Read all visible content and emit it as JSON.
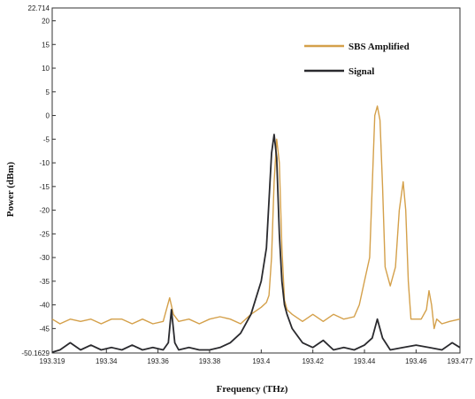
{
  "chart_data": {
    "type": "line",
    "title": "",
    "xlabel": "Frequency (THz)",
    "ylabel": "Power (dBm)",
    "xlim": [
      193.319,
      193.477
    ],
    "ylim": [
      -50.1629,
      22.714
    ],
    "x_ticks": [
      193.319,
      193.34,
      193.36,
      193.38,
      193.4,
      193.42,
      193.44,
      193.46,
      193.477
    ],
    "x_tick_labels": [
      "193.319",
      "193.34",
      "193.36",
      "193.38",
      "193.4",
      "193.42",
      "193.44",
      "193.46",
      "193.477"
    ],
    "y_ticks": [
      22.714,
      20,
      15,
      10,
      5,
      0,
      -5,
      -10,
      -15,
      -20,
      -25,
      -30,
      -35,
      -40,
      -45,
      -50.1629
    ],
    "y_tick_labels": [
      "22.714",
      "20",
      "15",
      "10",
      "5",
      "0",
      "-5",
      "-10",
      "-15",
      "-20",
      "-25",
      "-30",
      "-35",
      "-40",
      "-45",
      "-50.1629"
    ],
    "grid": false,
    "legend_position": "top-right",
    "series": [
      {
        "name": "SBS Amplified",
        "color": "#D4A04A",
        "x": [
          193.319,
          193.322,
          193.326,
          193.33,
          193.334,
          193.338,
          193.342,
          193.346,
          193.35,
          193.354,
          193.358,
          193.362,
          193.3645,
          193.366,
          193.368,
          193.372,
          193.376,
          193.38,
          193.384,
          193.388,
          193.392,
          193.396,
          193.4,
          193.402,
          193.403,
          193.404,
          193.405,
          193.406,
          193.407,
          193.408,
          193.409,
          193.41,
          193.412,
          193.416,
          193.42,
          193.424,
          193.428,
          193.432,
          193.436,
          193.438,
          193.44,
          193.442,
          193.443,
          193.444,
          193.445,
          193.446,
          193.447,
          193.448,
          193.45,
          193.452,
          193.4535,
          193.455,
          193.456,
          193.457,
          193.458,
          193.46,
          193.462,
          193.464,
          193.465,
          193.466,
          193.467,
          193.468,
          193.47,
          193.473,
          193.477
        ],
        "values": [
          -43,
          -44,
          -43,
          -43.5,
          -43,
          -44,
          -43,
          -43,
          -44,
          -43,
          -44,
          -43.5,
          -38.5,
          -42,
          -43.5,
          -43,
          -44,
          -43,
          -42.5,
          -43,
          -44,
          -42,
          -40.5,
          -39.5,
          -38,
          -30,
          -14,
          -5,
          -10,
          -28,
          -39,
          -41,
          -42,
          -43.5,
          -42,
          -43.5,
          -42,
          -43,
          -42.5,
          -40,
          -35,
          -30,
          -15,
          0,
          2,
          -1,
          -15,
          -32,
          -36,
          -32,
          -20,
          -14,
          -20,
          -35,
          -43,
          -43,
          -43,
          -41,
          -37,
          -40,
          -45,
          -43,
          -44,
          -43.5,
          -43
        ]
      },
      {
        "name": "Signal",
        "color": "#2A2A2E",
        "x": [
          193.319,
          193.322,
          193.326,
          193.33,
          193.334,
          193.338,
          193.342,
          193.346,
          193.35,
          193.354,
          193.358,
          193.362,
          193.364,
          193.3652,
          193.3665,
          193.368,
          193.372,
          193.376,
          193.38,
          193.384,
          193.388,
          193.392,
          193.396,
          193.4,
          193.402,
          193.403,
          193.404,
          193.405,
          193.406,
          193.407,
          193.408,
          193.409,
          193.41,
          193.412,
          193.416,
          193.42,
          193.424,
          193.428,
          193.432,
          193.436,
          193.44,
          193.443,
          193.445,
          193.447,
          193.45,
          193.455,
          193.46,
          193.465,
          193.47,
          193.474,
          193.477
        ],
        "values": [
          -50,
          -49.5,
          -48,
          -49.5,
          -48.5,
          -49.5,
          -49,
          -49.5,
          -48.5,
          -49.5,
          -49,
          -49.5,
          -48,
          -41,
          -48,
          -49.5,
          -49,
          -49.5,
          -49.5,
          -49,
          -48,
          -46,
          -42,
          -35,
          -28,
          -18,
          -8,
          -4,
          -9,
          -25,
          -35,
          -40,
          -42,
          -45,
          -48,
          -49,
          -47.5,
          -49.5,
          -49,
          -49.5,
          -48.5,
          -47,
          -43,
          -47,
          -49.5,
          -49,
          -48.5,
          -49,
          -49.5,
          -48,
          -49
        ]
      }
    ]
  }
}
